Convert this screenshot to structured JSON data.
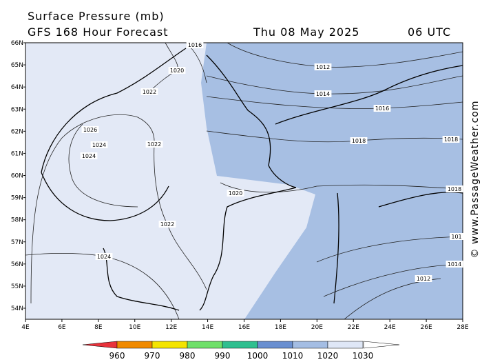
{
  "header": {
    "title": "Surface Pressure (mb)",
    "subtitle": "GFS 168 Hour Forecast",
    "date": "Thu 08 May 2025",
    "time": "06 UTC"
  },
  "map": {
    "lat_labels": [
      "66N",
      "65N",
      "64N",
      "63N",
      "62N",
      "61N",
      "60N",
      "59N",
      "58N",
      "57N",
      "56N",
      "55N",
      "54N"
    ],
    "lon_labels": [
      "4E",
      "6E",
      "8E",
      "10E",
      "12E",
      "14E",
      "16E",
      "18E",
      "20E",
      "22E",
      "24E",
      "26E",
      "28E"
    ],
    "isobar_labels": [
      "1016",
      "1020",
      "1012",
      "1022",
      "1014",
      "1016",
      "1026",
      "1024",
      "1022",
      "1018",
      "1018",
      "1024",
      "1020",
      "1018",
      "1022",
      "101",
      "1024",
      "1014",
      "1012"
    ]
  },
  "legend": {
    "labels": [
      "960",
      "970",
      "980",
      "990",
      "1000",
      "1010",
      "1020",
      "1030"
    ]
  },
  "credit": "© www.PassageWeather.com"
}
